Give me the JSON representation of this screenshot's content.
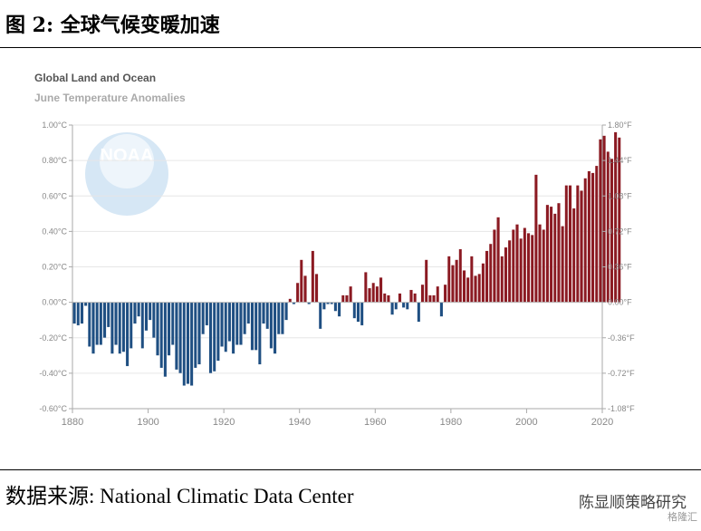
{
  "figure": {
    "title": "图 2:  全球气候变暖加速",
    "source": "数据来源:  National Climatic Data Center",
    "watermark": "陈显顺策略研究",
    "watermark_logo": "格隆汇"
  },
  "chart_data": {
    "type": "bar",
    "title": "Global Land and Ocean",
    "subtitle": "June Temperature Anomalies",
    "logo": "NOAA",
    "xlim": [
      1880,
      2020
    ],
    "ylim": [
      -0.6,
      1.0
    ],
    "x_ticks": [
      "1880",
      "1900",
      "1920",
      "1940",
      "1960",
      "1980",
      "2000",
      "2020"
    ],
    "y_ticks_left": [
      "1.00°C",
      "0.80°C",
      "0.60°C",
      "0.40°C",
      "0.20°C",
      "0.00°C",
      "-0.20°C",
      "-0.40°C",
      "-0.60°C"
    ],
    "y_ticks_right": [
      "1.80°F",
      "1.44°F",
      "1.08°F",
      "0.72°F",
      "0.36°F",
      "0.00°F",
      "-0.36°F",
      "-0.72°F",
      "-1.08°F"
    ],
    "grid": true,
    "colors": {
      "positive": "#8b1a22",
      "negative": "#1f4f82"
    },
    "start_year": 1880,
    "values": [
      -0.12,
      -0.13,
      -0.12,
      -0.02,
      -0.25,
      -0.29,
      -0.24,
      -0.24,
      -0.2,
      -0.14,
      -0.29,
      -0.24,
      -0.29,
      -0.28,
      -0.36,
      -0.26,
      -0.12,
      -0.08,
      -0.26,
      -0.16,
      -0.1,
      -0.2,
      -0.3,
      -0.37,
      -0.42,
      -0.3,
      -0.24,
      -0.38,
      -0.4,
      -0.47,
      -0.46,
      -0.47,
      -0.37,
      -0.35,
      -0.18,
      -0.13,
      -0.4,
      -0.39,
      -0.33,
      -0.25,
      -0.28,
      -0.22,
      -0.29,
      -0.24,
      -0.24,
      -0.18,
      -0.12,
      -0.27,
      -0.27,
      -0.35,
      -0.12,
      -0.15,
      -0.26,
      -0.29,
      -0.18,
      -0.18,
      -0.1,
      0.02,
      -0.01,
      0.11,
      0.24,
      0.15,
      -0.01,
      0.29,
      0.16,
      -0.15,
      -0.04,
      -0.01,
      -0.01,
      -0.05,
      -0.08,
      0.04,
      0.04,
      0.09,
      -0.09,
      -0.11,
      -0.13,
      0.17,
      0.08,
      0.11,
      0.09,
      0.14,
      0.05,
      0.04,
      -0.07,
      -0.04,
      0.05,
      -0.03,
      -0.04,
      0.07,
      0.05,
      -0.11,
      0.1,
      0.24,
      0.04,
      0.04,
      0.09,
      -0.08,
      0.1,
      0.26,
      0.21,
      0.24,
      0.3,
      0.18,
      0.14,
      0.26,
      0.15,
      0.16,
      0.22,
      0.29,
      0.33,
      0.41,
      0.48,
      0.26,
      0.31,
      0.35,
      0.41,
      0.44,
      0.36,
      0.42,
      0.39,
      0.38,
      0.72,
      0.44,
      0.41,
      0.55,
      0.54,
      0.5,
      0.56,
      0.43,
      0.66,
      0.66,
      0.53,
      0.66,
      0.63,
      0.7,
      0.74,
      0.73,
      0.77,
      0.92,
      0.94,
      0.85,
      0.81,
      0.96,
      0.93
    ]
  }
}
